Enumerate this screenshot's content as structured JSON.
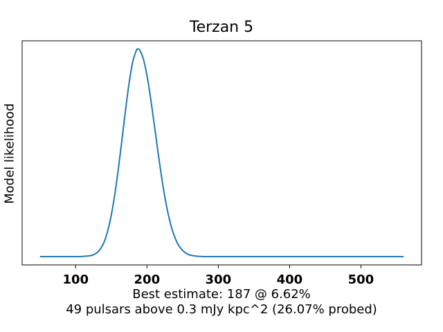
{
  "chart_data": {
    "type": "line",
    "title": "Terzan 5",
    "xlabel_lines": [
      "Best estimate: 187 @ 6.62%",
      "49 pulsars above 0.3 mJy kpc^2 (26.07% probed)"
    ],
    "ylabel": "Model likelihood",
    "xlim": [
      25,
      585
    ],
    "ylim": [
      -0.04,
      1.04
    ],
    "xticks": [
      100,
      200,
      300,
      400,
      500
    ],
    "xtick_labels": [
      "100",
      "200",
      "300",
      "400",
      "500"
    ],
    "yticks": [],
    "grid": false,
    "legend": "none",
    "series": [
      {
        "color": "#1f77b4",
        "x": [
          50,
          80,
          100,
          110,
          120,
          125,
          130,
          135,
          140,
          145,
          150,
          155,
          160,
          165,
          170,
          175,
          180,
          185,
          187,
          190,
          195,
          200,
          205,
          210,
          215,
          220,
          225,
          230,
          235,
          240,
          245,
          250,
          255,
          260,
          270,
          280,
          300,
          350,
          400,
          450,
          500,
          560
        ],
        "y": [
          0.0,
          0.0,
          0.0,
          0.001,
          0.004,
          0.009,
          0.019,
          0.038,
          0.071,
          0.124,
          0.2,
          0.302,
          0.426,
          0.565,
          0.707,
          0.837,
          0.938,
          0.993,
          1.0,
          0.994,
          0.952,
          0.873,
          0.766,
          0.643,
          0.516,
          0.395,
          0.289,
          0.202,
          0.134,
          0.085,
          0.051,
          0.03,
          0.016,
          0.008,
          0.002,
          0.0,
          0.0,
          0.0,
          0.0,
          0.0,
          0.0,
          0.0
        ]
      }
    ]
  }
}
